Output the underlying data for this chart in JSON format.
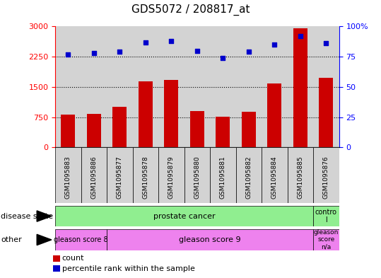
{
  "title": "GDS5072 / 208817_at",
  "samples": [
    "GSM1095883",
    "GSM1095886",
    "GSM1095877",
    "GSM1095878",
    "GSM1095879",
    "GSM1095880",
    "GSM1095881",
    "GSM1095882",
    "GSM1095884",
    "GSM1095885",
    "GSM1095876"
  ],
  "counts": [
    820,
    830,
    1000,
    1630,
    1680,
    900,
    760,
    880,
    1580,
    2950,
    1720
  ],
  "percentile_ranks": [
    77,
    78,
    79,
    87,
    88,
    80,
    74,
    79,
    85,
    92,
    86
  ],
  "bar_color": "#cc0000",
  "dot_color": "#0000cc",
  "ylim_left": [
    0,
    3000
  ],
  "ylim_right": [
    0,
    100
  ],
  "yticks_left": [
    0,
    750,
    1500,
    2250,
    3000
  ],
  "yticks_right": [
    0,
    25,
    50,
    75,
    100
  ],
  "ytick_labels_right": [
    "0",
    "25",
    "50",
    "75",
    "100%"
  ],
  "grid_lines": [
    750,
    1500,
    2250
  ],
  "legend_count": "count",
  "legend_percentile": "percentile rank within the sample",
  "bar_color_rgb": "#cc0000",
  "dot_color_rgb": "#0000cc",
  "bg_plot": "#d3d3d3",
  "bg_figure": "#ffffff",
  "prostate_cancer_color": "#90ee90",
  "control_color": "#90ee90",
  "gleason8_color": "#ee82ee",
  "gleason9_color": "#ee82ee",
  "gleasonNA_color": "#ee82ee",
  "n_samples": 11,
  "n_prostate": 10,
  "n_gleason8": 2,
  "n_gleason9": 8,
  "n_control": 1
}
